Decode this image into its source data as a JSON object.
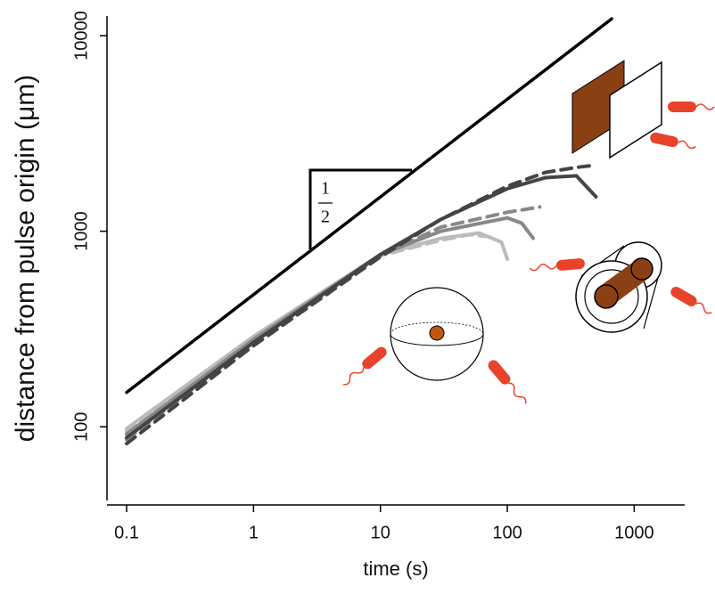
{
  "chart_data": {
    "type": "line",
    "xlabel": "time (s)",
    "ylabel": "distance from pulse origin (μm)",
    "log_x": true,
    "log_y": true,
    "xlim": [
      0.07,
      2500
    ],
    "ylim": [
      42,
      12600
    ],
    "xticks": [
      0.1,
      1,
      10,
      100,
      1000
    ],
    "yticks": [
      100,
      1000,
      10000
    ],
    "annotation": {
      "numerator": "1",
      "denominator": "2"
    },
    "series": [
      {
        "color": "#000000",
        "dashed": false,
        "x": [
          0.1,
          665
        ],
        "values": [
          150,
          12200
        ]
      },
      {
        "color": "#bbbbbb",
        "dashed": true,
        "x": [
          0.1,
          1,
          10,
          30,
          50,
          70
        ],
        "values": [
          95,
          285,
          750,
          900,
          960,
          940
        ]
      },
      {
        "color": "#bbbbbb",
        "dashed": false,
        "x": [
          0.1,
          1,
          10,
          30,
          60,
          90,
          100
        ],
        "values": [
          98,
          290,
          760,
          920,
          980,
          880,
          720
        ]
      },
      {
        "color": "#888888",
        "dashed": true,
        "x": [
          0.1,
          1,
          10,
          30,
          100,
          180
        ],
        "values": [
          86,
          270,
          750,
          1050,
          1250,
          1330
        ]
      },
      {
        "color": "#888888",
        "dashed": false,
        "x": [
          0.1,
          1,
          10,
          30,
          100,
          130,
          160
        ],
        "values": [
          92,
          280,
          760,
          1000,
          1170,
          1100,
          920
        ]
      },
      {
        "color": "#444444",
        "dashed": true,
        "x": [
          0.1,
          1,
          10,
          30,
          100,
          200,
          350,
          500
        ],
        "values": [
          82,
          260,
          740,
          1150,
          1700,
          2000,
          2120,
          2180
        ]
      },
      {
        "color": "#444444",
        "dashed": false,
        "x": [
          0.1,
          1,
          10,
          30,
          100,
          200,
          350,
          500
        ],
        "values": [
          88,
          270,
          760,
          1150,
          1650,
          1880,
          1920,
          1500
        ]
      }
    ]
  }
}
